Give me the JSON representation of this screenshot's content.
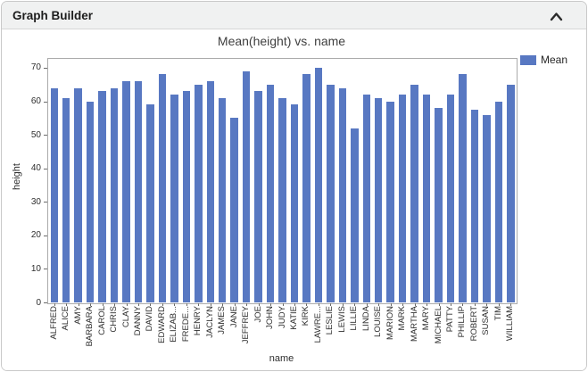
{
  "panel": {
    "title": "Graph Builder"
  },
  "colors": {
    "bar": "#5878c2",
    "header_bg": "#f0f1f1",
    "panel_border": "#c9c9c9",
    "axis_frame": "#ababab"
  },
  "chart_data": {
    "type": "bar",
    "title": "Mean(height) vs. name",
    "xlabel": "name",
    "ylabel": "height",
    "ylim": [
      0,
      72.9
    ],
    "yticks": [
      0,
      10,
      20,
      30,
      40,
      50,
      60,
      70
    ],
    "grid": false,
    "legend_position": "top-right",
    "categories": [
      "ALFRED",
      "ALICE",
      "AMY",
      "BARBARA",
      "CAROL",
      "CHRIS",
      "CLAY",
      "DANNY",
      "DAVID",
      "EDWARD",
      "ELIZAB...",
      "FREDE...",
      "HENRY",
      "JACLYN",
      "JAMES",
      "JANE",
      "JEFFREY",
      "JOE",
      "JOHN",
      "JUDY",
      "KATIE",
      "KIRK",
      "LAWRE...",
      "LESLIE",
      "LEWIS",
      "LILLIE",
      "LINDA",
      "LOUISE",
      "MARION",
      "MARK",
      "MARTHA",
      "MARY",
      "MICHAEL",
      "PATTY",
      "PHILLIP",
      "ROBERT",
      "SUSAN",
      "TIM",
      "WILLIAM"
    ],
    "series": [
      {
        "name": "Mean",
        "values": [
          64,
          61,
          64,
          60,
          63,
          64,
          66,
          66,
          59,
          68,
          62,
          63,
          65,
          66,
          61,
          55,
          69,
          63,
          65,
          61,
          59,
          68,
          70,
          65,
          64,
          52,
          62,
          61,
          60,
          62,
          65,
          62,
          58,
          62,
          68,
          57.5,
          56,
          60,
          65
        ]
      }
    ]
  }
}
